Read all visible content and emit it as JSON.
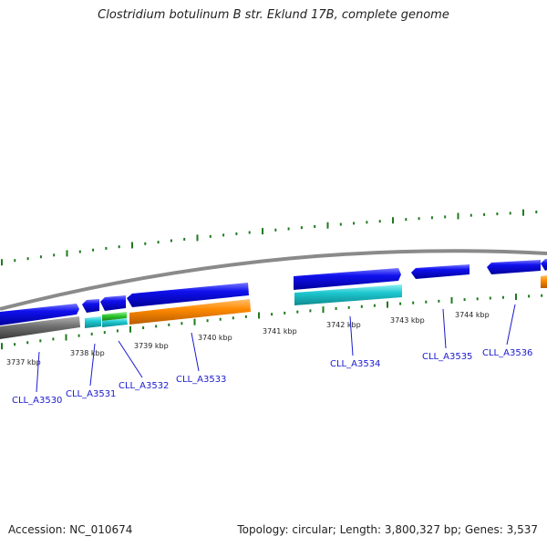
{
  "title": "Clostridium botulinum B str. Eklund 17B, complete genome",
  "footer": {
    "accession": "Accession: NC_010674",
    "info": "Topology: circular; Length: 3,800,327 bp; Genes: 3,537"
  },
  "colors": {
    "forward_cds": "#0d0de0",
    "reverse_cds": "#1ec8d0",
    "orange_feature": "#ff8a00",
    "green_feature": "#2ec82e",
    "gray_feature": "#6e6e6e",
    "tick": "#1f7a1f",
    "label": "#1a1ad0"
  },
  "scale_labels": [
    "3737 kbp",
    "3738 kbp",
    "3739 kbp",
    "3740 kbp",
    "3741 kbp",
    "3742 kbp",
    "3743 kbp",
    "3744 kbp"
  ],
  "gene_labels": [
    "CLL_A3530",
    "CLL_A3531",
    "CLL_A3532",
    "CLL_A3533",
    "CLL_A3534",
    "CLL_A3535",
    "CLL_A3536"
  ]
}
